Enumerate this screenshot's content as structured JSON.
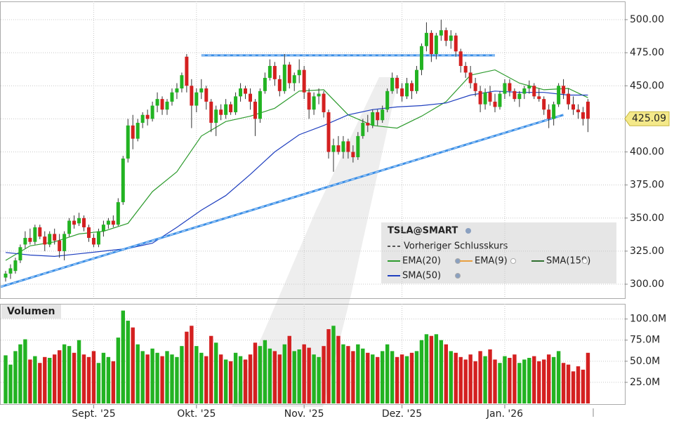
{
  "chart_data": {
    "type": "candlestick",
    "symbol": "TSLA@SMART",
    "categories": [
      null,
      null,
      null,
      null,
      null,
      null,
      null,
      null,
      null,
      null,
      null,
      null,
      null,
      null,
      null,
      null,
      null,
      null,
      "Sept. '25",
      null,
      null,
      null,
      null,
      null,
      null,
      null,
      null,
      null,
      null,
      null,
      null,
      null,
      null,
      null,
      null,
      null,
      null,
      null,
      null,
      "Okt. '25",
      null,
      null,
      null,
      null,
      null,
      null,
      null,
      null,
      null,
      null,
      null,
      null,
      null,
      null,
      null,
      null,
      null,
      null,
      null,
      null,
      null,
      "Nov. '25",
      null,
      null,
      null,
      null,
      null,
      null,
      null,
      null,
      null,
      null,
      null,
      null,
      null,
      null,
      null,
      null,
      null,
      null,
      null,
      "Dez. '25",
      null,
      null,
      null,
      null,
      null,
      null,
      null,
      null,
      null,
      null,
      null,
      null,
      null,
      null,
      null,
      null,
      null,
      null,
      null,
      null,
      "Jan. '26",
      null,
      null,
      null,
      null,
      null,
      null,
      null,
      null,
      null,
      null,
      null,
      null,
      null,
      null,
      null,
      null,
      null
    ],
    "ohlc": [
      [
        305,
        310,
        302,
        308
      ],
      [
        308,
        315,
        304,
        312
      ],
      [
        310,
        320,
        308,
        318
      ],
      [
        318,
        330,
        316,
        328
      ],
      [
        330,
        340,
        327,
        335
      ],
      [
        335,
        342,
        330,
        332
      ],
      [
        332,
        345,
        330,
        343
      ],
      [
        343,
        345,
        334,
        336
      ],
      [
        336,
        340,
        325,
        330
      ],
      [
        330,
        340,
        328,
        338
      ],
      [
        338,
        342,
        330,
        333
      ],
      [
        333,
        338,
        320,
        325
      ],
      [
        325,
        340,
        318,
        338
      ],
      [
        338,
        350,
        336,
        348
      ],
      [
        348,
        352,
        342,
        345
      ],
      [
        346,
        354,
        344,
        350
      ],
      [
        350,
        352,
        340,
        343
      ],
      [
        343,
        345,
        332,
        335
      ],
      [
        335,
        338,
        328,
        330
      ],
      [
        330,
        342,
        328,
        340
      ],
      [
        340,
        348,
        336,
        345
      ],
      [
        345,
        350,
        342,
        348
      ],
      [
        348,
        352,
        343,
        345
      ],
      [
        345,
        365,
        344,
        362
      ],
      [
        362,
        397,
        360,
        395
      ],
      [
        395,
        425,
        392,
        420
      ],
      [
        420,
        428,
        402,
        410
      ],
      [
        410,
        425,
        408,
        422
      ],
      [
        422,
        430,
        418,
        428
      ],
      [
        428,
        432,
        420,
        425
      ],
      [
        425,
        438,
        423,
        435
      ],
      [
        435,
        445,
        430,
        440
      ],
      [
        440,
        442,
        428,
        432
      ],
      [
        432,
        440,
        428,
        438
      ],
      [
        438,
        448,
        435,
        445
      ],
      [
        445,
        452,
        440,
        448
      ],
      [
        448,
        460,
        445,
        458
      ],
      [
        472,
        474,
        445,
        450
      ],
      [
        450,
        455,
        418,
        435
      ],
      [
        435,
        448,
        430,
        445
      ],
      [
        445,
        455,
        440,
        448
      ],
      [
        448,
        450,
        432,
        438
      ],
      [
        438,
        440,
        415,
        422
      ],
      [
        422,
        435,
        412,
        432
      ],
      [
        432,
        436,
        424,
        428
      ],
      [
        428,
        440,
        425,
        436
      ],
      [
        436,
        438,
        428,
        430
      ],
      [
        430,
        445,
        428,
        442
      ],
      [
        442,
        452,
        438,
        448
      ],
      [
        448,
        450,
        440,
        444
      ],
      [
        444,
        448,
        432,
        438
      ],
      [
        438,
        440,
        412,
        425
      ],
      [
        425,
        448,
        422,
        446
      ],
      [
        446,
        460,
        444,
        456
      ],
      [
        456,
        470,
        454,
        465
      ],
      [
        465,
        468,
        450,
        455
      ],
      [
        455,
        458,
        442,
        446
      ],
      [
        446,
        474,
        444,
        466
      ],
      [
        466,
        468,
        448,
        452
      ],
      [
        452,
        460,
        446,
        458
      ],
      [
        458,
        470,
        452,
        462
      ],
      [
        462,
        465,
        440,
        445
      ],
      [
        445,
        448,
        425,
        432
      ],
      [
        432,
        445,
        428,
        442
      ],
      [
        442,
        448,
        436,
        444
      ],
      [
        444,
        446,
        426,
        430
      ],
      [
        430,
        432,
        395,
        400
      ],
      [
        400,
        410,
        385,
        405
      ],
      [
        405,
        412,
        398,
        400
      ],
      [
        400,
        412,
        395,
        408
      ],
      [
        408,
        410,
        395,
        400
      ],
      [
        400,
        405,
        392,
        396
      ],
      [
        396,
        415,
        394,
        412
      ],
      [
        412,
        425,
        410,
        422
      ],
      [
        422,
        428,
        415,
        420
      ],
      [
        420,
        432,
        418,
        430
      ],
      [
        430,
        432,
        420,
        424
      ],
      [
        424,
        435,
        422,
        432
      ],
      [
        432,
        448,
        430,
        446
      ],
      [
        446,
        460,
        444,
        456
      ],
      [
        456,
        458,
        444,
        448
      ],
      [
        448,
        452,
        438,
        442
      ],
      [
        442,
        456,
        440,
        452
      ],
      [
        452,
        454,
        440,
        446
      ],
      [
        446,
        465,
        444,
        462
      ],
      [
        462,
        482,
        458,
        480
      ],
      [
        480,
        498,
        476,
        490
      ],
      [
        490,
        492,
        468,
        474
      ],
      [
        474,
        490,
        470,
        488
      ],
      [
        488,
        500,
        484,
        492
      ],
      [
        492,
        494,
        480,
        484
      ],
      [
        484,
        492,
        478,
        488
      ],
      [
        488,
        490,
        472,
        476
      ],
      [
        476,
        478,
        460,
        465
      ],
      [
        465,
        468,
        456,
        460
      ],
      [
        460,
        465,
        448,
        452
      ],
      [
        452,
        456,
        442,
        446
      ],
      [
        446,
        450,
        430,
        436
      ],
      [
        436,
        448,
        432,
        445
      ],
      [
        445,
        450,
        435,
        438
      ],
      [
        438,
        444,
        430,
        434
      ],
      [
        434,
        446,
        432,
        444
      ],
      [
        444,
        455,
        440,
        452
      ],
      [
        452,
        455,
        442,
        446
      ],
      [
        446,
        448,
        438,
        440
      ],
      [
        440,
        446,
        434,
        444
      ],
      [
        444,
        450,
        440,
        448
      ],
      [
        448,
        454,
        444,
        450
      ],
      [
        450,
        452,
        440,
        442
      ],
      [
        442,
        448,
        438,
        440
      ],
      [
        440,
        442,
        428,
        432
      ],
      [
        432,
        436,
        418,
        425
      ],
      [
        425,
        438,
        420,
        436
      ],
      [
        436,
        452,
        434,
        450
      ],
      [
        450,
        455,
        440,
        444
      ],
      [
        444,
        448,
        432,
        436
      ],
      [
        436,
        442,
        428,
        432
      ],
      [
        432,
        436,
        425,
        430
      ],
      [
        430,
        434,
        420,
        425
      ],
      [
        438,
        440,
        415,
        425.09
      ]
    ],
    "volumes": [
      57,
      46,
      62,
      70,
      76,
      52,
      56,
      48,
      55,
      54,
      58,
      63,
      70,
      68,
      60,
      75,
      58,
      55,
      62,
      48,
      60,
      55,
      50,
      78,
      110,
      98,
      90,
      70,
      62,
      58,
      65,
      60,
      56,
      62,
      58,
      55,
      68,
      85,
      92,
      68,
      60,
      56,
      80,
      72,
      58,
      52,
      50,
      60,
      56,
      52,
      58,
      72,
      68,
      75,
      65,
      62,
      58,
      70,
      80,
      62,
      64,
      70,
      66,
      58,
      55,
      68,
      88,
      92,
      80,
      70,
      68,
      62,
      70,
      65,
      60,
      58,
      55,
      62,
      70,
      62,
      55,
      58,
      56,
      60,
      62,
      75,
      82,
      80,
      82,
      75,
      70,
      62,
      60,
      55,
      52,
      58,
      50,
      62,
      56,
      64,
      52,
      48,
      56,
      54,
      58,
      48,
      52,
      54,
      56,
      50,
      52,
      58,
      55,
      62,
      48,
      46,
      38,
      44,
      40,
      60
    ],
    "up_color": "#22b322",
    "down_color": "#d42020",
    "last_price": 425.09,
    "ylim": [
      289.4,
      513.8
    ],
    "yticks": [
      {
        "value": 300,
        "label": "300.00"
      },
      {
        "value": 325,
        "label": "325.00"
      },
      {
        "value": 350,
        "label": "350.00"
      },
      {
        "value": 375,
        "label": "375.00"
      },
      {
        "value": 400,
        "label": "400.00"
      },
      {
        "value": 425,
        "label": "425.00"
      },
      {
        "value": 450,
        "label": "450.00"
      },
      {
        "value": 475,
        "label": "475.00"
      },
      {
        "value": 500,
        "label": "500.00"
      }
    ],
    "volume_title": "Volumen",
    "volume_ylim": [
      0,
      118
    ],
    "volume_ticks": [
      {
        "value": 25,
        "label": "25.0M"
      },
      {
        "value": 50,
        "label": "50.0M"
      },
      {
        "value": 75,
        "label": "75.0M"
      },
      {
        "value": 100,
        "label": "100.0M"
      }
    ],
    "grid": true,
    "prev_close_label": "Vorheriger Schlusskurs",
    "prev_close_color": "#555555",
    "series": [
      {
        "name": "EMA(20)",
        "color": "#2e9b2e",
        "x": [
          0,
          5,
          10,
          15,
          20,
          25,
          30,
          35,
          40,
          45,
          50,
          55,
          60,
          65,
          70,
          75,
          80,
          85,
          90,
          95,
          100,
          105,
          110,
          115,
          119
        ],
        "values": [
          318,
          329,
          332,
          338,
          340,
          346,
          370,
          385,
          412,
          423,
          427,
          433,
          446,
          447,
          428,
          420,
          418,
          427,
          438,
          458,
          462,
          452,
          447,
          448,
          441
        ]
      },
      {
        "name": "EMA(9)",
        "color": "#e8a040"
      },
      {
        "name": "SMA(150)",
        "color": "#2f6f2f"
      },
      {
        "name": "SMA(50)",
        "color": "#1f3fbf",
        "x": [
          0,
          5,
          10,
          15,
          20,
          25,
          30,
          35,
          40,
          45,
          50,
          55,
          60,
          65,
          70,
          75,
          80,
          85,
          90,
          95,
          100,
          105,
          110,
          115,
          119
        ],
        "values": [
          324,
          322,
          321,
          323,
          325,
          327,
          331,
          343,
          356,
          367,
          383,
          400,
          413,
          420,
          428,
          432,
          434,
          435,
          437,
          443,
          446,
          445,
          445,
          443,
          443
        ]
      }
    ],
    "trendlines": [
      {
        "color": "#3a8ee6",
        "x": [
          40,
          100
        ],
        "values": [
          473,
          473
        ]
      },
      {
        "color": "#3a8ee6",
        "x": [
          -1,
          114
        ],
        "values": [
          298,
          428
        ]
      }
    ]
  }
}
